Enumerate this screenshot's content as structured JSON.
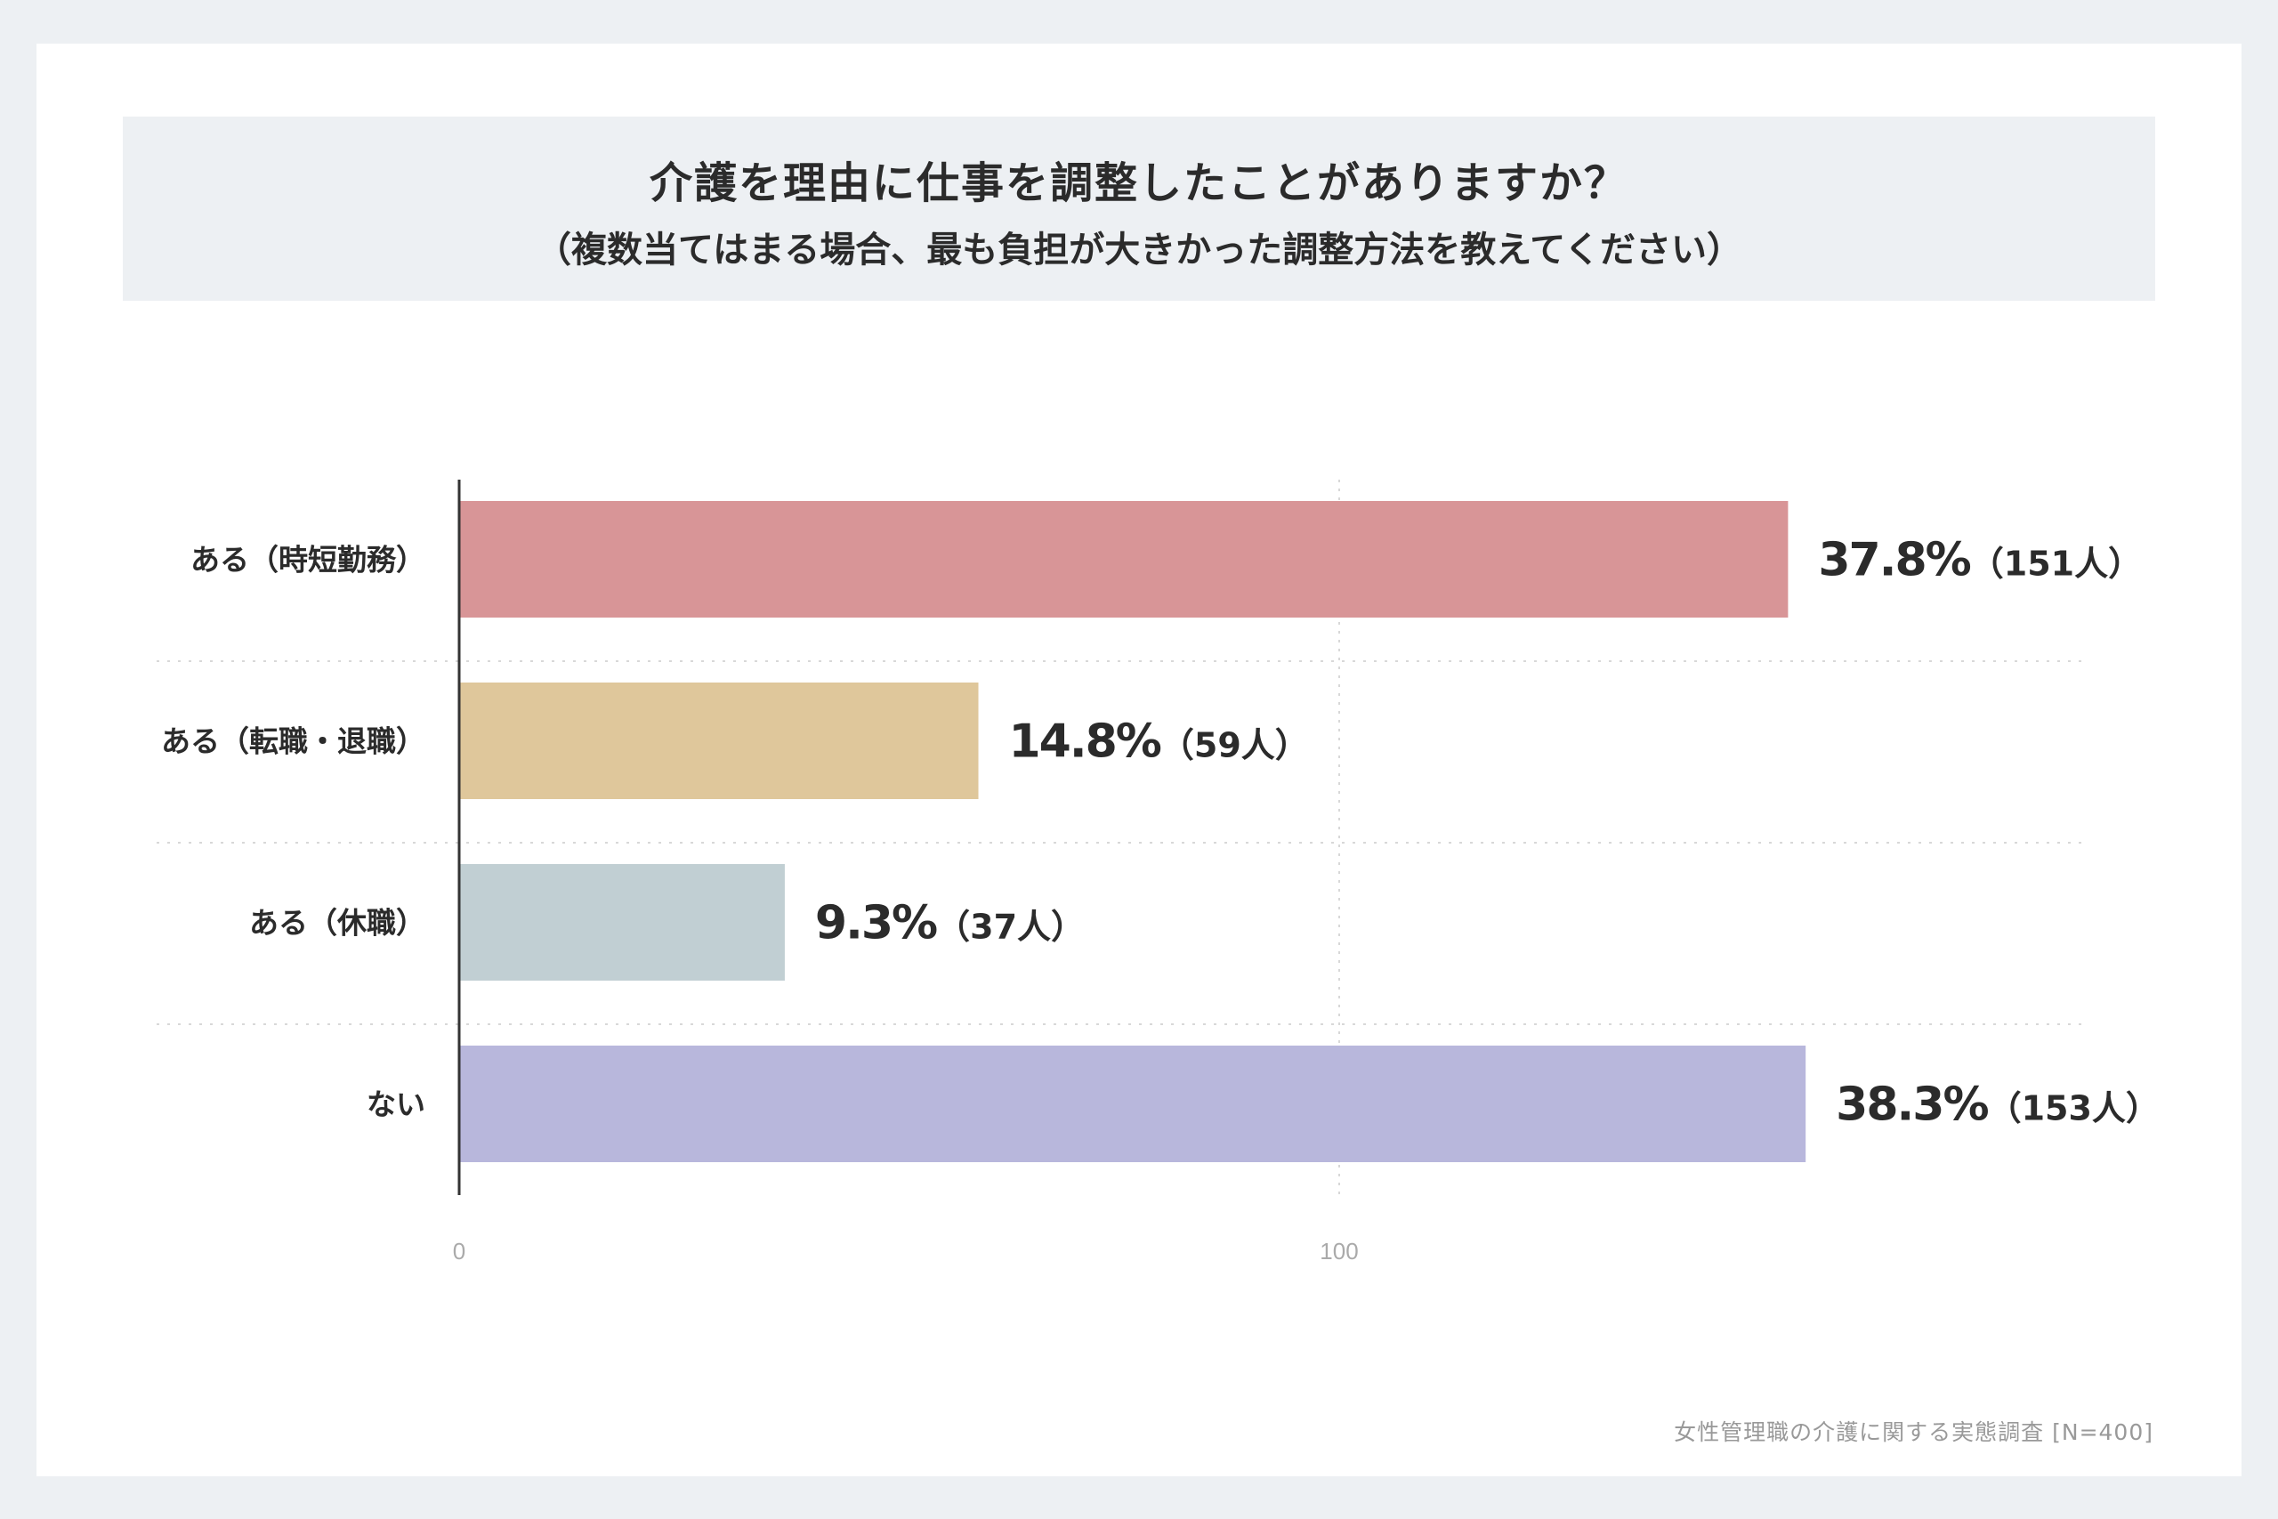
{
  "title": "介護を理由に仕事を調整したことがありますか？",
  "subtitle": "（複数当てはまる場合、最も負担が大きかった調整方法を教えてください）",
  "source": "女性管理職の介護に関する実態調査 [N=400]",
  "chart_data": {
    "type": "bar",
    "orientation": "horizontal",
    "categories": [
      "ある（時短勤務）",
      "ある（転職・退職）",
      "ある（休職）",
      "ない"
    ],
    "values": [
      151,
      59,
      37,
      153
    ],
    "percent_labels": [
      "37.8%",
      "14.8%",
      "9.3%",
      "38.3%"
    ],
    "count_labels": [
      "（151人）",
      "（59人）",
      "（37人）",
      "（153人）"
    ],
    "colors": [
      "#d89597",
      "#dfc79b",
      "#c1cfd3",
      "#b8b7dc"
    ],
    "xticks": [
      0,
      100
    ],
    "xlim": [
      0,
      200
    ],
    "grid": "vertical dotted at 100; horizontal dotted row separators",
    "xlabel": "",
    "ylabel": ""
  }
}
